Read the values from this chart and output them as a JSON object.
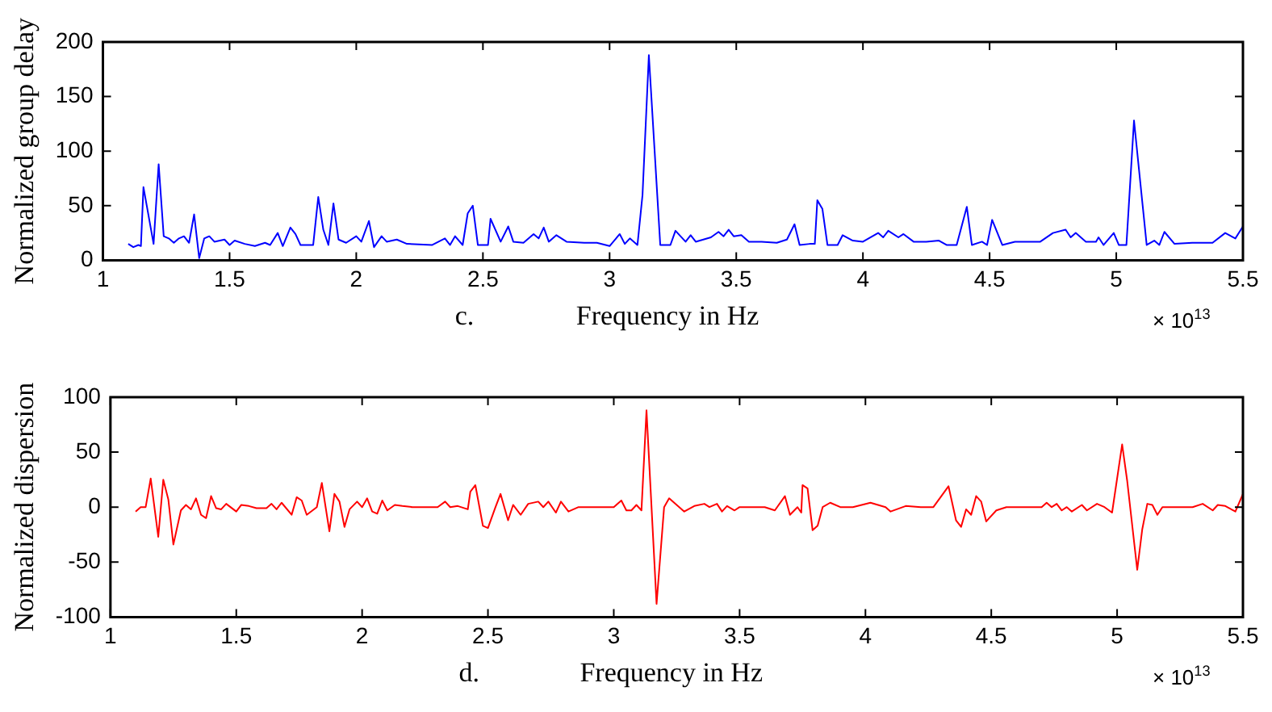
{
  "chart_data": [
    {
      "type": "line",
      "ylabel": "Normalized group delay",
      "xlabel": "Frequency in Hz",
      "annotations": [
        "c.",
        "× 10$^{13}$"
      ],
      "xlim": [
        1,
        5.5
      ],
      "xticks": [
        1,
        1.5,
        2,
        2.5,
        3,
        3.5,
        4,
        4.5,
        5,
        5.5
      ],
      "ylim": [
        0,
        200
      ],
      "yticks": [
        0,
        50,
        100,
        150,
        200
      ],
      "grid": false,
      "legend": false,
      "marker": "none",
      "line_style": "solid",
      "series": [
        {
          "color": "#0000ff",
          "x": [
            1.1,
            1.12,
            1.14,
            1.15,
            1.16,
            1.2,
            1.22,
            1.24,
            1.26,
            1.28,
            1.3,
            1.32,
            1.34,
            1.36,
            1.38,
            1.4,
            1.42,
            1.44,
            1.48,
            1.5,
            1.52,
            1.56,
            1.6,
            1.64,
            1.66,
            1.69,
            1.71,
            1.74,
            1.76,
            1.78,
            1.83,
            1.85,
            1.87,
            1.89,
            1.91,
            1.93,
            1.96,
            2.0,
            2.02,
            2.05,
            2.07,
            2.1,
            2.12,
            2.16,
            2.2,
            2.3,
            2.35,
            2.37,
            2.39,
            2.42,
            2.44,
            2.46,
            2.48,
            2.52,
            2.53,
            2.57,
            2.6,
            2.62,
            2.66,
            2.7,
            2.72,
            2.74,
            2.76,
            2.79,
            2.83,
            2.9,
            2.95,
            3.0,
            3.04,
            3.06,
            3.08,
            3.11,
            3.13,
            3.155,
            3.2,
            3.24,
            3.26,
            3.3,
            3.32,
            3.34,
            3.4,
            3.43,
            3.45,
            3.47,
            3.49,
            3.52,
            3.55,
            3.6,
            3.66,
            3.7,
            3.73,
            3.75,
            3.79,
            3.81,
            3.82,
            3.84,
            3.86,
            3.9,
            3.92,
            3.96,
            4.0,
            4.06,
            4.08,
            4.1,
            4.14,
            4.16,
            4.2,
            4.25,
            4.3,
            4.33,
            4.37,
            4.41,
            4.43,
            4.47,
            4.49,
            4.51,
            4.55,
            4.6,
            4.7,
            4.75,
            4.8,
            4.82,
            4.84,
            4.88,
            4.92,
            4.93,
            4.95,
            4.99,
            5.01,
            5.04,
            5.07,
            5.12,
            5.15,
            5.17,
            5.19,
            5.23,
            5.3,
            5.38,
            5.43,
            5.47,
            5.5
          ],
          "values": [
            15,
            12,
            14,
            13,
            67,
            15,
            88,
            22,
            20,
            16,
            20,
            22,
            16,
            42,
            2,
            20,
            22,
            17,
            19,
            14,
            18,
            15,
            13,
            16,
            14,
            25,
            13,
            30,
            24,
            14,
            14,
            58,
            28,
            14,
            52,
            19,
            16,
            22,
            17,
            36,
            12,
            22,
            17,
            19,
            15,
            14,
            20,
            14,
            22,
            14,
            43,
            50,
            14,
            14,
            38,
            17,
            31,
            17,
            16,
            24,
            20,
            30,
            17,
            23,
            17,
            16,
            16,
            13,
            24,
            15,
            20,
            14,
            60,
            188,
            14,
            14,
            27,
            17,
            23,
            17,
            21,
            26,
            22,
            28,
            22,
            23,
            17,
            17,
            16,
            19,
            33,
            14,
            15,
            15,
            55,
            47,
            14,
            14,
            23,
            18,
            17,
            25,
            21,
            27,
            21,
            24,
            17,
            17,
            18,
            14,
            14,
            49,
            14,
            17,
            14,
            37,
            14,
            17,
            17,
            25,
            28,
            21,
            25,
            17,
            17,
            21,
            14,
            25,
            14,
            14,
            128,
            14,
            18,
            14,
            26,
            15,
            16,
            16,
            25,
            20,
            31
          ]
        }
      ]
    },
    {
      "type": "line",
      "ylabel": "Normalized dispersion",
      "xlabel": "Frequency in Hz",
      "annotations": [
        "d.",
        "× 10$^{13}$"
      ],
      "xlim": [
        1,
        5.5
      ],
      "xticks": [
        1,
        1.5,
        2,
        2.5,
        3,
        3.5,
        4,
        4.5,
        5,
        5.5
      ],
      "ylim": [
        -100,
        100
      ],
      "yticks": [
        -100,
        -50,
        0,
        50,
        100
      ],
      "grid": false,
      "legend": false,
      "marker": "none",
      "line_style": "solid",
      "series": [
        {
          "color": "#ff0000",
          "x": [
            1.1,
            1.12,
            1.14,
            1.16,
            1.19,
            1.21,
            1.23,
            1.25,
            1.28,
            1.3,
            1.32,
            1.34,
            1.36,
            1.38,
            1.4,
            1.42,
            1.44,
            1.46,
            1.5,
            1.52,
            1.55,
            1.58,
            1.62,
            1.64,
            1.66,
            1.68,
            1.72,
            1.74,
            1.76,
            1.78,
            1.82,
            1.84,
            1.87,
            1.89,
            1.91,
            1.93,
            1.95,
            1.98,
            2.0,
            2.02,
            2.04,
            2.06,
            2.08,
            2.1,
            2.13,
            2.16,
            2.2,
            2.3,
            2.33,
            2.35,
            2.38,
            2.42,
            2.43,
            2.45,
            2.48,
            2.5,
            2.53,
            2.55,
            2.58,
            2.6,
            2.63,
            2.66,
            2.7,
            2.72,
            2.74,
            2.77,
            2.79,
            2.82,
            2.86,
            2.95,
            3.0,
            3.03,
            3.05,
            3.07,
            3.09,
            3.11,
            3.13,
            3.17,
            3.2,
            3.22,
            3.25,
            3.28,
            3.32,
            3.36,
            3.38,
            3.41,
            3.43,
            3.45,
            3.48,
            3.5,
            3.6,
            3.64,
            3.68,
            3.7,
            3.73,
            3.745,
            3.75,
            3.77,
            3.79,
            3.81,
            3.83,
            3.86,
            3.9,
            3.95,
            4.02,
            4.05,
            4.08,
            4.1,
            4.16,
            4.22,
            4.27,
            4.33,
            4.36,
            4.38,
            4.4,
            4.42,
            4.44,
            4.46,
            4.48,
            4.52,
            4.56,
            4.7,
            4.72,
            4.74,
            4.76,
            4.78,
            4.8,
            4.82,
            4.86,
            4.88,
            4.92,
            4.95,
            4.98,
            5.02,
            5.04,
            5.08,
            5.1,
            5.12,
            5.14,
            5.16,
            5.18,
            5.2,
            5.3,
            5.34,
            5.38,
            5.4,
            5.43,
            5.47,
            5.5
          ],
          "values": [
            -4,
            0,
            0,
            26,
            -27,
            25,
            7,
            -34,
            -3,
            2,
            -2,
            8,
            -7,
            -10,
            10,
            -1,
            -2,
            3,
            -4,
            2,
            1,
            -1,
            -1,
            3,
            -2,
            4,
            -7,
            9,
            6,
            -7,
            0,
            22,
            -22,
            12,
            5,
            -18,
            -2,
            5,
            0,
            8,
            -4,
            -6,
            6,
            -3,
            2,
            1,
            0,
            0,
            5,
            0,
            1,
            -2,
            14,
            20,
            -17,
            -19,
            0,
            12,
            -12,
            2,
            -7,
            3,
            5,
            0,
            5,
            -5,
            5,
            -4,
            0,
            0,
            0,
            6,
            -3,
            -3,
            2,
            -3,
            88,
            -88,
            0,
            8,
            2,
            -4,
            1,
            3,
            0,
            3,
            -4,
            1,
            -3,
            0,
            0,
            -3,
            10,
            -7,
            0,
            -5,
            20,
            17,
            -21,
            -17,
            0,
            4,
            0,
            0,
            4,
            2,
            0,
            -4,
            1,
            0,
            0,
            19,
            -12,
            -18,
            -2,
            -7,
            10,
            5,
            -13,
            -3,
            0,
            0,
            4,
            0,
            3,
            -3,
            0,
            -4,
            2,
            -3,
            3,
            0,
            -5,
            57,
            24,
            -57,
            -20,
            3,
            2,
            -7,
            0,
            0,
            0,
            3,
            -3,
            2,
            1,
            -4,
            12
          ]
        }
      ]
    }
  ]
}
